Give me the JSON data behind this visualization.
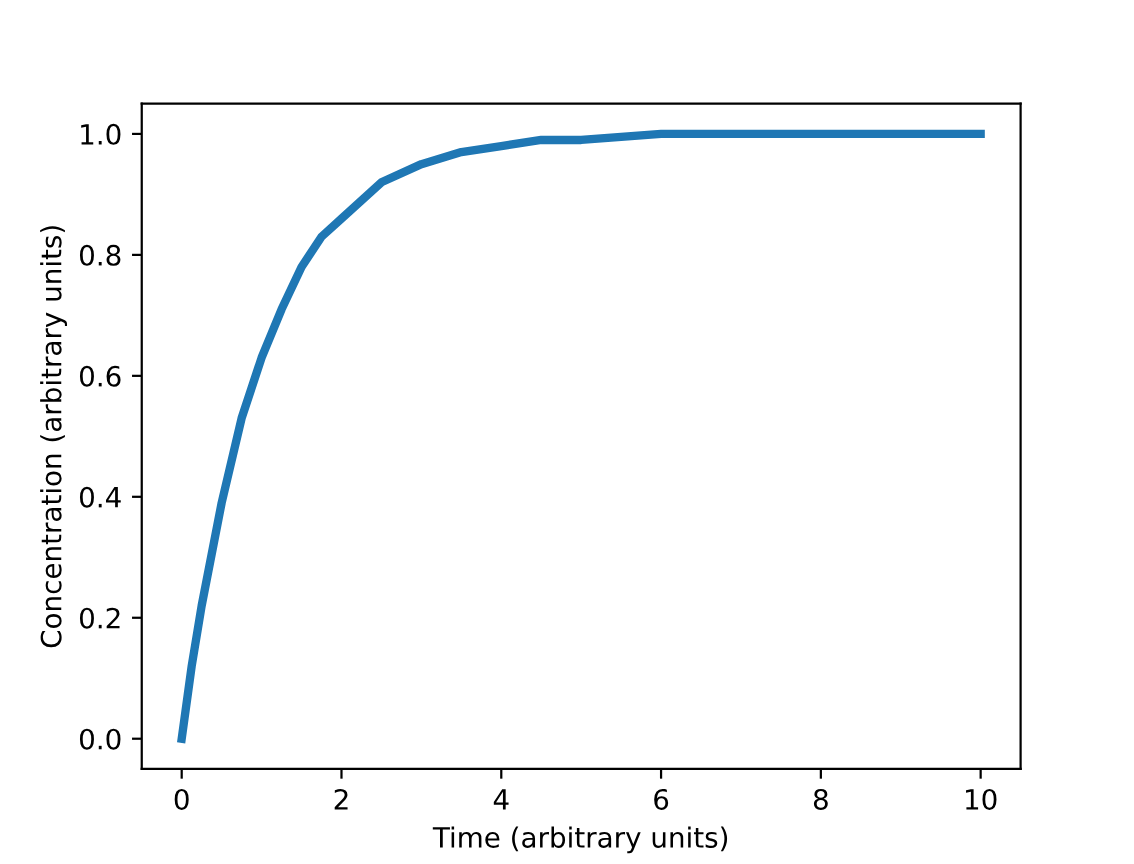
{
  "chart_data": {
    "type": "line",
    "xlabel": "Time (arbitrary units)",
    "ylabel": "Concentration (arbitrary units)",
    "series": [
      {
        "color": "#1f77b4",
        "x": [
          0,
          0.125,
          0.25,
          0.5,
          0.75,
          1,
          1.25,
          1.5,
          1.75,
          2,
          2.5,
          3,
          3.5,
          4,
          4.5,
          5,
          6,
          7,
          8,
          9,
          10
        ],
        "values": [
          0,
          0.12,
          0.22,
          0.39,
          0.53,
          0.63,
          0.71,
          0.78,
          0.83,
          0.86,
          0.92,
          0.95,
          0.97,
          0.98,
          0.99,
          0.99,
          1.0,
          1.0,
          1.0,
          1.0,
          1.0
        ]
      }
    ],
    "xlim": [
      -0.5,
      10.5
    ],
    "ylim": [
      -0.05,
      1.05
    ],
    "xticks": [
      0,
      2,
      4,
      6,
      8,
      10
    ],
    "yticks": [
      {
        "value": 0,
        "label": "0.0"
      },
      {
        "value": 0.2,
        "label": "0.2"
      },
      {
        "value": 0.4,
        "label": "0.4"
      },
      {
        "value": 0.6,
        "label": "0.6"
      },
      {
        "value": 0.8,
        "label": "0.8"
      },
      {
        "value": 1,
        "label": "1.0"
      }
    ],
    "grid": false,
    "legend": false,
    "marker": "none",
    "line_style": "solid"
  }
}
